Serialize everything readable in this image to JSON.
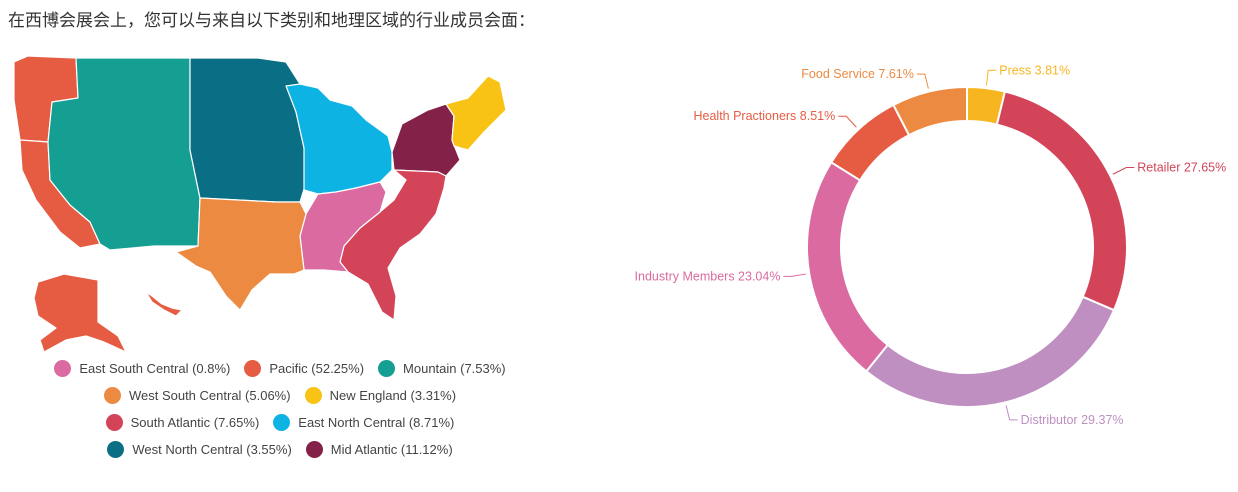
{
  "intro_text": "在西博会展会上，您可以与来自以下类别和地理区域的行业成员会面：",
  "colors": {
    "east_south_central": "#DA6AA0",
    "pacific": "#E65C43",
    "mountain": "#159E92",
    "west_south_central": "#ED8A41",
    "new_england": "#F9C316",
    "south_atlantic": "#D34459",
    "east_north_central": "#0DB3E3",
    "west_north_central": "#0A6F84",
    "mid_atlantic": "#842148"
  },
  "chart_data": [
    {
      "type": "choropleth-map",
      "legend_position": "bottom",
      "legend": [
        {
          "label": "East South Central (0.8%)",
          "region": "East South Central",
          "value": 0.8,
          "color": "#DA6AA0"
        },
        {
          "label": "Pacific (52.25%)",
          "region": "Pacific",
          "value": 52.25,
          "color": "#E65C43"
        },
        {
          "label": "Mountain (7.53%)",
          "region": "Mountain",
          "value": 7.53,
          "color": "#159E92"
        },
        {
          "label": "West South Central (5.06%)",
          "region": "West South Central",
          "value": 5.06,
          "color": "#ED8A41"
        },
        {
          "label": "New England (3.31%)",
          "region": "New England",
          "value": 3.31,
          "color": "#F9C316"
        },
        {
          "label": "South Atlantic (7.65%)",
          "region": "South Atlantic",
          "value": 7.65,
          "color": "#D34459"
        },
        {
          "label": "East North Central (8.71%)",
          "region": "East North Central",
          "value": 8.71,
          "color": "#0DB3E3"
        },
        {
          "label": "West North Central (3.55%)",
          "region": "West North Central",
          "value": 3.55,
          "color": "#0A6F84"
        },
        {
          "label": "Mid Atlantic (11.12%)",
          "region": "Mid Atlantic",
          "value": 11.12,
          "color": "#842148"
        }
      ],
      "legend_rows": [
        3,
        2,
        2,
        2
      ]
    },
    {
      "type": "pie",
      "style": "donut",
      "categories": [
        "Press",
        "Retailer",
        "Distributor",
        "Industry Members",
        "Health Practioners",
        "Food Service"
      ],
      "values": [
        3.81,
        27.65,
        29.37,
        23.04,
        8.51,
        7.61
      ],
      "colors": [
        "#F7B520",
        "#D34459",
        "#BE8FC0",
        "#DA6AA0",
        "#E65C43",
        "#ED8A41"
      ],
      "labels": [
        "Press 3.81%",
        "Retailer 27.65%",
        "Distributor 29.37%",
        "Industry Members 23.04%",
        "Health Practioners 8.51%",
        "Food Service 7.61%"
      ]
    }
  ]
}
